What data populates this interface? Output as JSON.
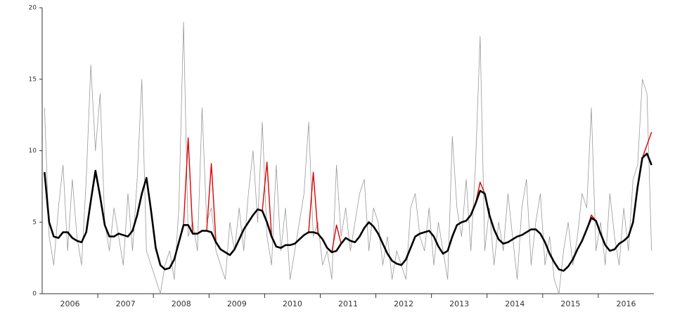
{
  "chart_data": {
    "type": "line",
    "x": [
      2006.042,
      2006.125,
      2006.208,
      2006.292,
      2006.375,
      2006.458,
      2006.542,
      2006.625,
      2006.708,
      2006.792,
      2006.875,
      2006.958,
      2007.042,
      2007.125,
      2007.208,
      2007.292,
      2007.375,
      2007.458,
      2007.542,
      2007.625,
      2007.708,
      2007.792,
      2007.875,
      2007.958,
      2008.042,
      2008.125,
      2008.208,
      2008.292,
      2008.375,
      2008.458,
      2008.542,
      2008.625,
      2008.708,
      2008.792,
      2008.875,
      2008.958,
      2009.042,
      2009.125,
      2009.208,
      2009.292,
      2009.375,
      2009.458,
      2009.542,
      2009.625,
      2009.708,
      2009.792,
      2009.875,
      2009.958,
      2010.042,
      2010.125,
      2010.208,
      2010.292,
      2010.375,
      2010.458,
      2010.542,
      2010.625,
      2010.708,
      2010.792,
      2010.875,
      2010.958,
      2011.042,
      2011.125,
      2011.208,
      2011.292,
      2011.375,
      2011.458,
      2011.542,
      2011.625,
      2011.708,
      2011.792,
      2011.875,
      2011.958,
      2012.042,
      2012.125,
      2012.208,
      2012.292,
      2012.375,
      2012.458,
      2012.542,
      2012.625,
      2012.708,
      2012.792,
      2012.875,
      2012.958,
      2013.042,
      2013.125,
      2013.208,
      2013.292,
      2013.375,
      2013.458,
      2013.542,
      2013.625,
      2013.708,
      2013.792,
      2013.875,
      2013.958,
      2014.042,
      2014.125,
      2014.208,
      2014.292,
      2014.375,
      2014.458,
      2014.542,
      2014.625,
      2014.708,
      2014.792,
      2014.875,
      2014.958,
      2015.042,
      2015.125,
      2015.208,
      2015.292,
      2015.375,
      2015.458,
      2015.542,
      2015.625,
      2015.708,
      2015.792,
      2015.875,
      2015.958,
      2016.042,
      2016.125,
      2016.208,
      2016.292,
      2016.375,
      2016.458,
      2016.542,
      2016.625,
      2016.708,
      2016.792,
      2016.875,
      2016.958
    ],
    "series": [
      {
        "color": "#999999",
        "width": 0.8,
        "values": [
          13,
          4,
          2,
          6,
          9,
          3,
          8,
          4,
          2,
          8,
          16,
          10,
          14,
          5,
          3,
          6,
          4,
          2,
          7,
          3,
          8,
          15,
          3,
          2,
          1,
          0,
          2,
          3,
          1,
          6,
          19,
          4,
          5,
          3,
          13,
          5,
          6,
          3,
          2,
          1,
          5,
          3,
          6,
          3,
          7,
          10,
          5,
          12,
          4,
          2,
          9,
          3,
          6,
          1,
          3,
          5,
          7,
          12,
          4,
          5,
          2,
          3,
          1,
          9,
          4,
          6,
          3,
          5,
          7,
          8,
          3,
          6,
          5,
          2,
          4,
          1,
          3,
          2,
          1,
          6,
          7,
          4,
          3,
          6,
          2,
          5,
          3,
          1,
          11,
          6,
          4,
          8,
          3,
          9,
          18,
          3,
          6,
          2,
          5,
          3,
          7,
          4,
          1,
          6,
          8,
          2,
          5,
          7,
          2,
          4,
          1,
          0,
          3,
          5,
          2,
          4,
          7,
          6,
          13,
          3,
          5,
          2,
          7,
          4,
          2,
          6,
          3,
          8,
          9,
          15,
          14,
          3
        ]
      },
      {
        "color": "#e00000",
        "width": 1.4,
        "values": [
          8.5,
          5.0,
          4.0,
          3.9,
          4.3,
          4.3,
          3.9,
          3.7,
          3.6,
          4.3,
          6.5,
          8.6,
          6.8,
          4.8,
          4.0,
          4.0,
          4.2,
          4.1,
          4.0,
          4.4,
          5.5,
          7.0,
          8.1,
          5.8,
          3.2,
          2.0,
          1.7,
          1.8,
          2.4,
          3.6,
          4.8,
          10.9,
          4.2,
          4.2,
          4.4,
          4.4,
          9.1,
          3.6,
          3.1,
          2.9,
          2.7,
          3.1,
          3.8,
          4.5,
          5.0,
          5.5,
          5.9,
          5.8,
          9.2,
          4.0,
          3.3,
          3.2,
          3.4,
          3.4,
          3.5,
          3.8,
          4.1,
          4.3,
          8.5,
          4.2,
          3.8,
          3.2,
          2.9,
          4.8,
          3.5,
          3.9,
          3.7,
          3.6,
          4.0,
          4.6,
          5.0,
          4.7,
          4.2,
          3.5,
          2.8,
          2.3,
          2.1,
          2.0,
          2.4,
          3.2,
          4.0,
          4.2,
          4.3,
          4.4,
          4.0,
          3.3,
          2.8,
          3.0,
          4.0,
          4.8,
          5.0,
          5.1,
          5.5,
          6.3,
          7.8,
          7.0,
          5.5,
          4.5,
          3.8,
          3.5,
          3.6,
          3.8,
          4.0,
          4.1,
          4.3,
          4.5,
          4.5,
          4.2,
          3.6,
          2.8,
          2.2,
          1.7,
          1.6,
          1.9,
          2.4,
          3.1,
          3.7,
          4.5,
          5.5,
          5.1,
          4.2,
          3.4,
          3.0,
          3.1,
          3.5,
          3.7,
          4.0,
          5.0,
          7.5,
          9.5,
          10.4,
          11.3
        ]
      },
      {
        "color": "#000000",
        "width": 2.6,
        "values": [
          8.5,
          5.0,
          4.0,
          3.9,
          4.3,
          4.3,
          3.9,
          3.7,
          3.6,
          4.3,
          6.5,
          8.6,
          6.8,
          4.8,
          4.0,
          4.0,
          4.2,
          4.1,
          4.0,
          4.4,
          5.5,
          7.0,
          8.1,
          5.8,
          3.2,
          2.0,
          1.7,
          1.8,
          2.4,
          3.6,
          4.8,
          4.8,
          4.2,
          4.2,
          4.4,
          4.4,
          4.3,
          3.6,
          3.1,
          2.9,
          2.7,
          3.1,
          3.8,
          4.5,
          5.0,
          5.5,
          5.9,
          5.8,
          5.0,
          4.0,
          3.3,
          3.2,
          3.4,
          3.4,
          3.5,
          3.8,
          4.1,
          4.3,
          4.3,
          4.2,
          3.8,
          3.2,
          2.9,
          3.0,
          3.5,
          3.9,
          3.7,
          3.6,
          4.0,
          4.6,
          5.0,
          4.7,
          4.2,
          3.5,
          2.8,
          2.3,
          2.1,
          2.0,
          2.4,
          3.2,
          4.0,
          4.2,
          4.3,
          4.4,
          4.0,
          3.3,
          2.8,
          3.0,
          4.0,
          4.8,
          5.0,
          5.1,
          5.5,
          6.3,
          7.2,
          7.0,
          5.5,
          4.5,
          3.8,
          3.5,
          3.6,
          3.8,
          4.0,
          4.1,
          4.3,
          4.5,
          4.5,
          4.2,
          3.6,
          2.8,
          2.2,
          1.7,
          1.6,
          1.9,
          2.4,
          3.1,
          3.7,
          4.5,
          5.3,
          5.1,
          4.2,
          3.4,
          3.0,
          3.1,
          3.5,
          3.7,
          4.0,
          5.0,
          7.5,
          9.5,
          9.8,
          9.0
        ]
      }
    ],
    "xlim": [
      2006,
      2017
    ],
    "xticks": [
      2007,
      2008,
      2009,
      2010,
      2011,
      2012,
      2013,
      2014,
      2015,
      2016
    ],
    "year_labels": [
      "2006",
      "2007",
      "2008",
      "2009",
      "2010",
      "2011",
      "2012",
      "2013",
      "2014",
      "2015",
      "2016"
    ],
    "ylim": [
      0,
      20
    ],
    "yticks": [
      0,
      5,
      10,
      15,
      20
    ]
  }
}
